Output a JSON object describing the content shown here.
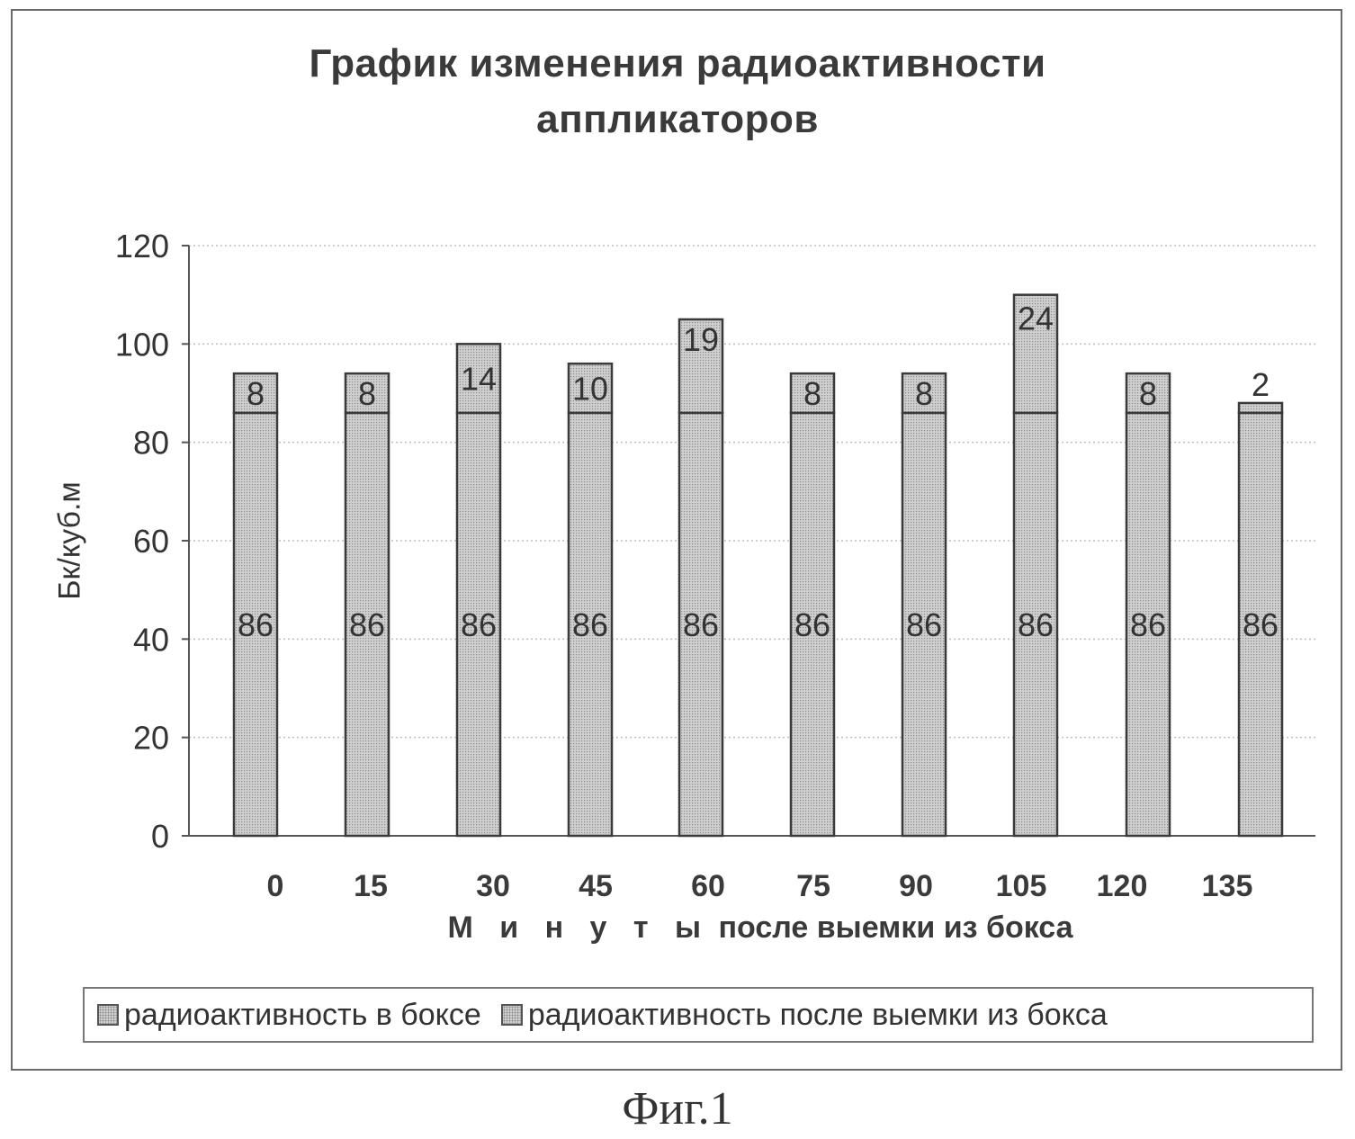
{
  "chart_data": {
    "type": "bar",
    "stacked": true,
    "title": [
      "График изменения радиоактивности",
      "аппликаторов"
    ],
    "xlabel_words": [
      "М и н у т ы",
      "после выемки",
      "из",
      "бокса"
    ],
    "ylabel": "Бк/куб.м",
    "categories": [
      "0",
      "15",
      "30",
      "45",
      "60",
      "75",
      "90",
      "105",
      "120",
      "135"
    ],
    "series": [
      {
        "name": "радиоактивность в боксе",
        "values": [
          86,
          86,
          86,
          86,
          86,
          86,
          86,
          86,
          86,
          86
        ]
      },
      {
        "name": "радиоактивность после выемки из бокса",
        "values": [
          8,
          8,
          14,
          10,
          19,
          8,
          8,
          24,
          8,
          2
        ]
      }
    ],
    "ylim": [
      0,
      120
    ],
    "yticks": [
      0,
      20,
      40,
      60,
      80,
      100,
      120
    ],
    "grid": true,
    "legend_position": "bottom",
    "colors": {
      "bar_fill": "#cfcfcf",
      "bar_dots": "#8c8c8c",
      "bar_stroke": "#3a3a3a",
      "grid": "#bdbdbd"
    }
  },
  "caption": "Фиг.1"
}
